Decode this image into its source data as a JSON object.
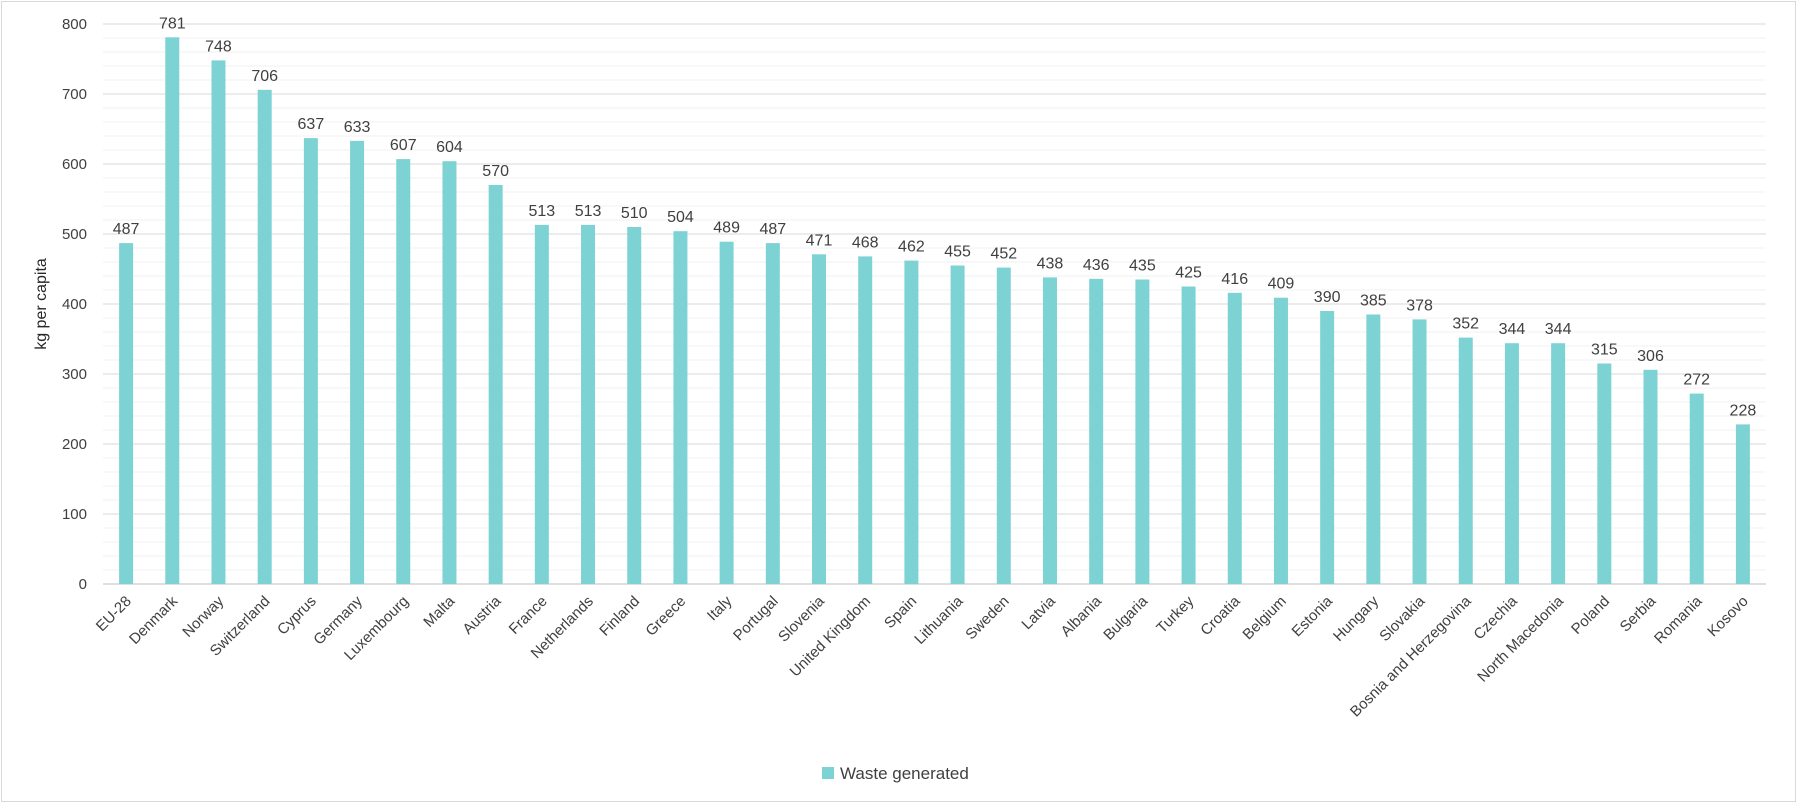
{
  "chart_data": {
    "type": "bar",
    "ylabel": "kg per capita",
    "ylim": [
      0,
      800
    ],
    "ytick_step": 100,
    "minor_step": 20,
    "grid": true,
    "legend_position": "bottom",
    "bar_color": "#7dd3d3",
    "series": [
      {
        "name": "Waste generated",
        "values": [
          487,
          781,
          748,
          706,
          637,
          633,
          607,
          604,
          570,
          513,
          513,
          510,
          504,
          489,
          487,
          471,
          468,
          462,
          455,
          452,
          438,
          436,
          435,
          425,
          416,
          409,
          390,
          385,
          378,
          352,
          344,
          344,
          315,
          306,
          272,
          228
        ]
      }
    ],
    "categories": [
      "EU-28",
      "Denmark",
      "Norway",
      "Switzerland",
      "Cyprus",
      "Germany",
      "Luxembourg",
      "Malta",
      "Austria",
      "France",
      "Netherlands",
      "Finland",
      "Greece",
      "Italy",
      "Portugal",
      "Slovenia",
      "United Kingdom",
      "Spain",
      "Lithuania",
      "Sweden",
      "Latvia",
      "Albania",
      "Bulgaria",
      "Turkey",
      "Croatia",
      "Belgium",
      "Estonia",
      "Hungary",
      "Slovakia",
      "Bosnia and Herzegovina",
      "Czechia",
      "North Macedonia",
      "Poland",
      "Serbia",
      "Romania",
      "Kosovo"
    ]
  }
}
